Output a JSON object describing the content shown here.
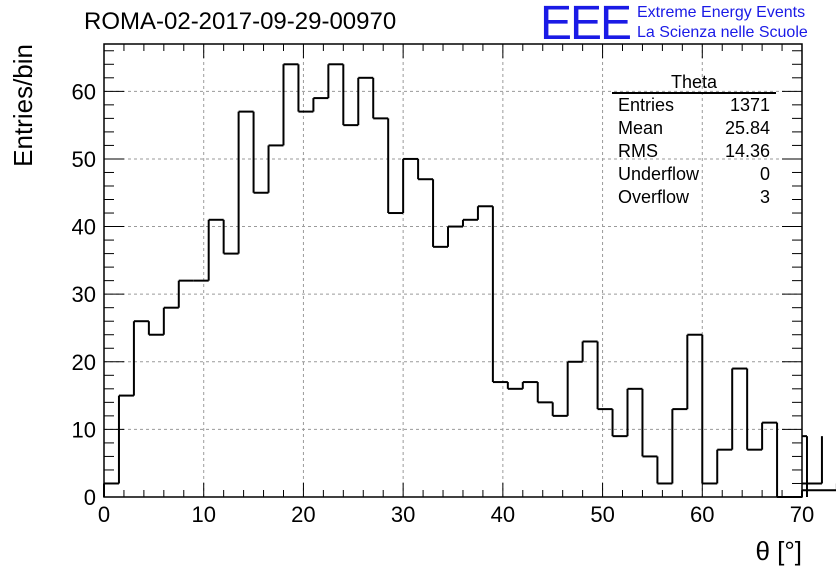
{
  "title": "ROMA-02-2017-09-29-00970",
  "logo": {
    "mark": "EEE",
    "line1": "Extreme Energy Events",
    "line2": "La Scienza nelle Scuole"
  },
  "stats": {
    "name": "Theta",
    "rows": [
      {
        "label": "Entries",
        "value": "1371"
      },
      {
        "label": "Mean",
        "value": "25.84"
      },
      {
        "label": "RMS",
        "value": "14.36"
      },
      {
        "label": "Underflow",
        "value": "0"
      },
      {
        "label": "Overflow",
        "value": "3"
      }
    ]
  },
  "chart_data": {
    "type": "histogram",
    "xlabel": "θ [°]",
    "ylabel": "Entries/bin",
    "xlim": [
      0,
      70
    ],
    "ylim": [
      0,
      67
    ],
    "xticks": [
      0,
      10,
      20,
      30,
      40,
      50,
      60,
      70
    ],
    "yticks": [
      0,
      10,
      20,
      30,
      40,
      50,
      60
    ],
    "grid": true,
    "bin_width": 1.5,
    "bin_edges_start": 0,
    "values": [
      2,
      15,
      26,
      24,
      28,
      32,
      32,
      41,
      36,
      57,
      45,
      52,
      64,
      57,
      59,
      64,
      55,
      62,
      56,
      42,
      50,
      47,
      37,
      40,
      41,
      43,
      17,
      16,
      17,
      14,
      12,
      20,
      23,
      13,
      9,
      16,
      6,
      2,
      13,
      24,
      2,
      7,
      19,
      7,
      11,
      0,
      0,
      9,
      2,
      1
    ],
    "colors": {
      "line": "#000000",
      "grid": "#9a9a9a",
      "logo": "#1a1ae6"
    }
  }
}
